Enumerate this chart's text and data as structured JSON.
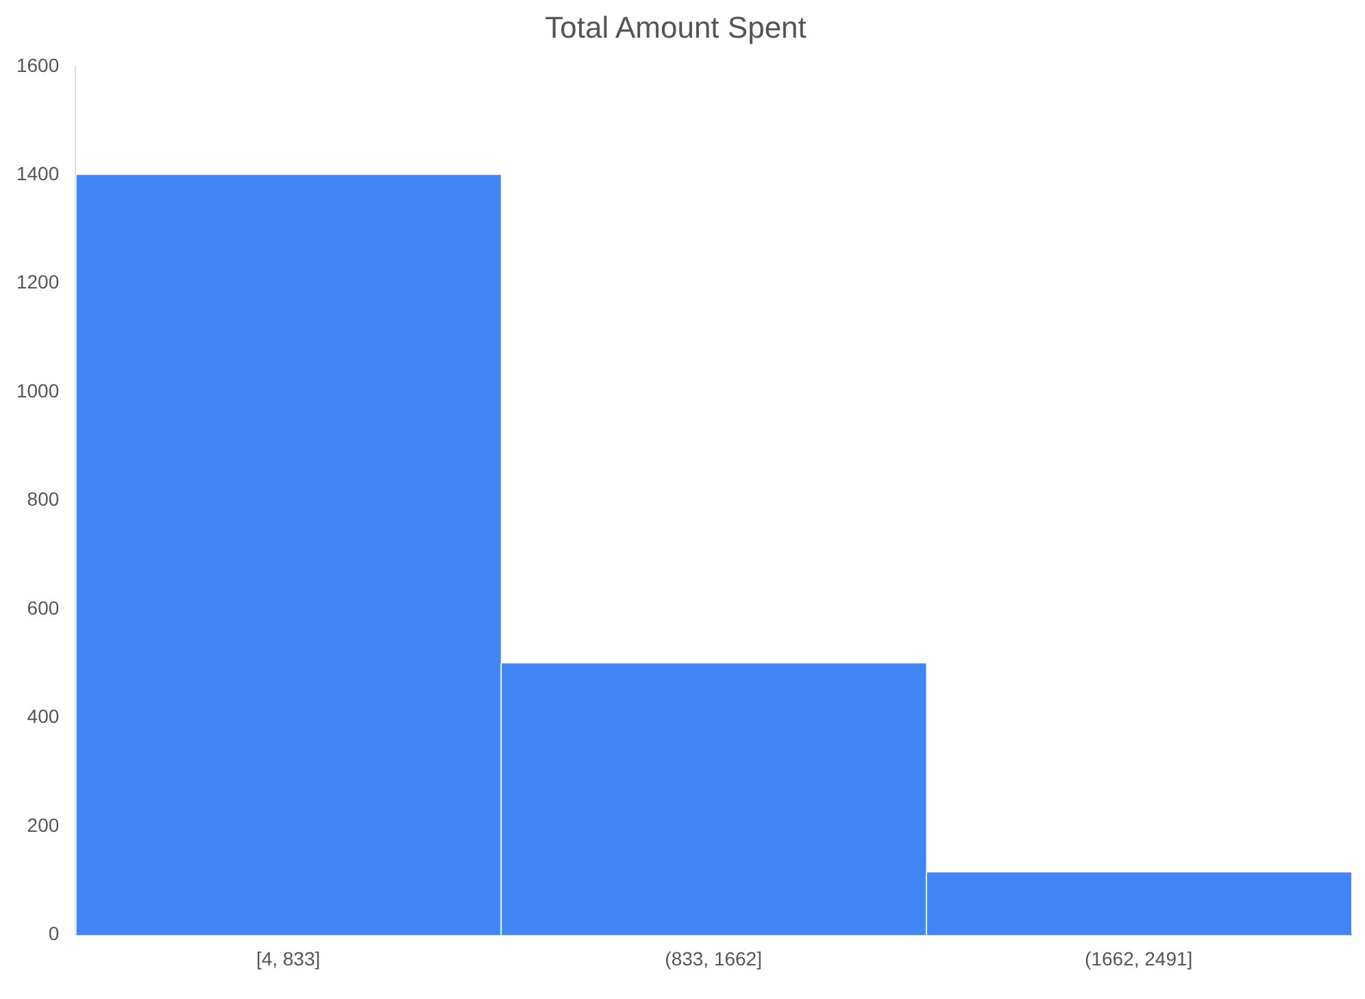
{
  "chart_data": {
    "type": "bar",
    "title": "Total Amount Spent",
    "categories": [
      "[4, 833]",
      "(833, 1662]",
      "(1662, 2491]"
    ],
    "values": [
      1400,
      500,
      115
    ],
    "color": "#4285f4",
    "ylim": [
      0,
      1600
    ],
    "yticks": [
      0,
      200,
      400,
      600,
      800,
      1000,
      1200,
      1400,
      1600
    ],
    "grid": false,
    "legend": false
  }
}
